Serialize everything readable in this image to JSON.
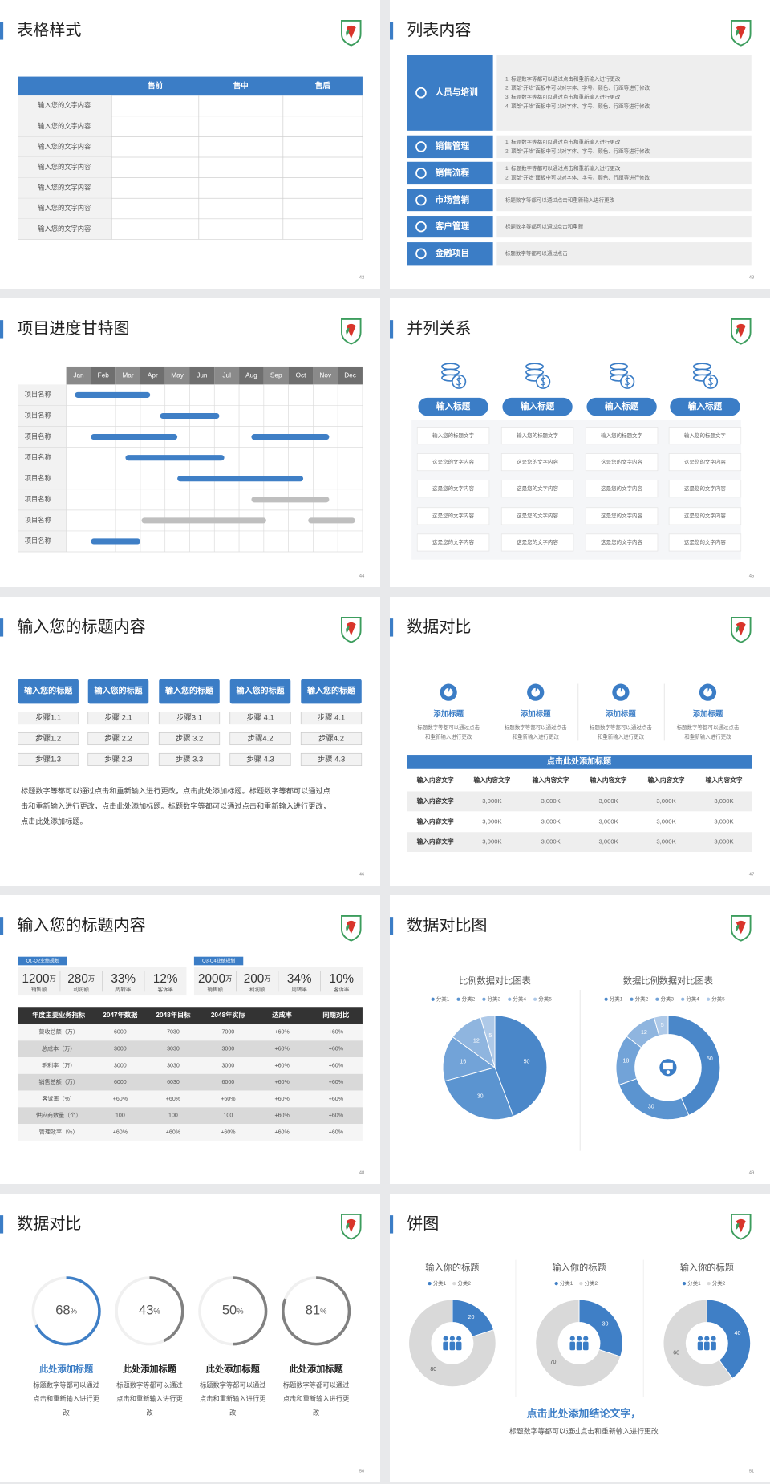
{
  "slides": [
    {
      "title": "表格样式",
      "page": "42",
      "table": {
        "header": [
          "售前",
          "售中",
          "售后"
        ],
        "row_labels": [
          "输入您的文字内容",
          "输入您的文字内容",
          "输入您的文字内容",
          "输入您的文字内容",
          "输入您的文字内容",
          "输入您的文字内容",
          "输入您的文字内容"
        ]
      }
    },
    {
      "title": "列表内容",
      "page": "43",
      "items": [
        {
          "label": "人员与培训",
          "lines": [
            "1. 标题数字等都可以通过点击和重新输入进行更改",
            "2. 顶部“开始”面板中可以对字体、字号、颜色、行距等进行修改",
            "3. 标题数字等都可以通过点击和重新输入进行更改",
            "4. 顶部“开始”面板中可以对字体、字号、颜色、行距等进行修改"
          ]
        },
        {
          "label": "销售管理",
          "lines": [
            "1. 标题数字等都可以通过点击和重新输入进行更改",
            "2. 顶部“开始”面板中可以对字体、字号、颜色、行距等进行修改"
          ]
        },
        {
          "label": "销售流程",
          "lines": [
            "1. 标题数字等都可以通过点击和重新输入进行更改",
            "2. 顶部“开始”面板中可以对字体、字号、颜色、行距等进行修改"
          ]
        },
        {
          "label": "市场营销",
          "lines": [
            "标题数字等都可以通过点击和重新输入进行更改"
          ]
        },
        {
          "label": "客户管理",
          "lines": [
            "标题数字等都可以通过点击和重新"
          ]
        },
        {
          "label": "金融项目",
          "lines": [
            "标题数字等都可以通过点击"
          ]
        }
      ]
    },
    {
      "title": "项目进度甘特图",
      "page": "44",
      "gantt": {
        "months": [
          "Jan",
          "Feb",
          "Mar",
          "Apr",
          "May",
          "Jun",
          "Jul",
          "Aug",
          "Sep",
          "Oct",
          "Nov",
          "Dec"
        ],
        "rows": [
          {
            "label": "项目名称",
            "bars": [
              {
                "start": 0.35,
                "end": 3.4,
                "color": "#3f7fc6"
              }
            ]
          },
          {
            "label": "项目名称",
            "bars": [
              {
                "start": 3.8,
                "end": 6.2,
                "color": "#3f7fc6"
              }
            ]
          },
          {
            "label": "项目名称",
            "bars": [
              {
                "start": 1.0,
                "end": 4.5,
                "color": "#3f7fc6"
              },
              {
                "start": 7.5,
                "end": 10.65,
                "color": "#3f7fc6"
              }
            ]
          },
          {
            "label": "项目名称",
            "bars": [
              {
                "start": 2.4,
                "end": 6.4,
                "color": "#3f7fc6"
              }
            ]
          },
          {
            "label": "项目名称",
            "bars": [
              {
                "start": 4.5,
                "end": 9.6,
                "color": "#3f7fc6"
              }
            ]
          },
          {
            "label": "项目名称",
            "bars": [
              {
                "start": 7.5,
                "end": 10.65,
                "color": "#bfbfbf"
              }
            ]
          },
          {
            "label": "项目名称",
            "bars": [
              {
                "start": 3.05,
                "end": 8.1,
                "color": "#bfbfbf"
              },
              {
                "start": 9.8,
                "end": 11.7,
                "color": "#bfbfbf"
              }
            ]
          },
          {
            "label": "项目名称",
            "bars": [
              {
                "start": 1.0,
                "end": 3.0,
                "color": "#3f7fc6"
              }
            ]
          }
        ]
      }
    },
    {
      "title": "并列关系",
      "page": "45",
      "columns": [
        {
          "title": "输入标题",
          "items": [
            "输入您的标题文字",
            "这是您的文字内容",
            "这是您的文字内容",
            "这是您的文字内容",
            "这是您的文字内容"
          ]
        },
        {
          "title": "输入标题",
          "items": [
            "输入您的标题文字",
            "这是您的文字内容",
            "这是您的文字内容",
            "这是您的文字内容",
            "这是您的文字内容"
          ]
        },
        {
          "title": "输入标题",
          "items": [
            "输入您的标题文字",
            "这是您的文字内容",
            "这是您的文字内容",
            "这是您的文字内容",
            "这是您的文字内容"
          ]
        },
        {
          "title": "输入标题",
          "items": [
            "输入您的标题文字",
            "这是您的文字内容",
            "这是您的文字内容",
            "这是您的文字内容",
            "这是您的文字内容"
          ]
        }
      ]
    },
    {
      "title": "输入您的标题内容",
      "page": "46",
      "steps": [
        {
          "title": "输入您的标题",
          "items": [
            "步骤1.1",
            "步骤1.2",
            "步骤1.3"
          ]
        },
        {
          "title": "输入您的标题",
          "items": [
            "步骤 2.1",
            "步骤 2.2",
            "步骤 2.3"
          ]
        },
        {
          "title": "输入您的标题",
          "items": [
            "步骤3.1",
            "步骤 3.2",
            "步骤 3.3"
          ]
        },
        {
          "title": "输入您的标题",
          "items": [
            "步骤 4.1",
            "步骤4.2",
            "步骤 4.3"
          ]
        },
        {
          "title": "输入您的标题",
          "items": [
            "步骤 4.1",
            "步骤4.2",
            "步骤 4.3"
          ]
        }
      ],
      "paragraph": "标题数字等都可以通过点击和重新输入进行更改，点击此处添加标题。标题数字等都可以通过点击和重新输入进行更改，点击此处添加标题。标题数字等都可以通过点击和重新输入进行更改，点击此处添加标题。"
    },
    {
      "title": "数据对比",
      "page": "47",
      "features": [
        {
          "title": "添加标题",
          "text": "标题数字等都可以通过点击和重新输入进行更改"
        },
        {
          "title": "添加标题",
          "text": "标题数字等都可以通过点击和重新输入进行更改"
        },
        {
          "title": "添加标题",
          "text": "标题数字等都可以通过点击和重新输入进行更改"
        },
        {
          "title": "添加标题",
          "text": "标题数字等都可以通过点击和重新输入进行更改"
        }
      ],
      "table": {
        "title": "点击此处添加标题",
        "header": [
          "输入内容文字",
          "输入内容文字",
          "输入内容文字",
          "输入内容文字",
          "输入内容文字",
          "输入内容文字"
        ],
        "rows": [
          [
            "输入内容文字",
            "3,000K",
            "3,000K",
            "3,000K",
            "3,000K",
            "3,000K"
          ],
          [
            "输入内容文字",
            "3,000K",
            "3,000K",
            "3,000K",
            "3,000K",
            "3,000K"
          ],
          [
            "输入内容文字",
            "3,000K",
            "3,000K",
            "3,000K",
            "3,000K",
            "3,000K"
          ]
        ]
      }
    },
    {
      "title": "输入您的标题内容",
      "page": "48",
      "groups": [
        {
          "tag": "Q1-Q2业绩规划",
          "kpis": [
            {
              "value": "1200",
              "unit": "万",
              "label": "销售额"
            },
            {
              "value": "280",
              "unit": "万",
              "label": "利润额"
            },
            {
              "value": "33%",
              "label": "周转率"
            },
            {
              "value": "12%",
              "label": "客诉率"
            }
          ]
        },
        {
          "tag": "Q3-Q4业绩规划",
          "kpis": [
            {
              "value": "2000",
              "unit": "万",
              "label": "销售额"
            },
            {
              "value": "200",
              "unit": "万",
              "label": "利润额"
            },
            {
              "value": "34%",
              "label": "周转率"
            },
            {
              "value": "10%",
              "label": "客诉率"
            }
          ]
        }
      ],
      "table": {
        "header": [
          "年度主要业务指标",
          "2047年数据",
          "2048年目标",
          "2048年实际",
          "达成率",
          "同期对比"
        ],
        "rows": [
          [
            "营收总额（万）",
            "6000",
            "7030",
            "7000",
            "+60%",
            "+60%"
          ],
          [
            "总成本（万）",
            "3000",
            "3030",
            "3000",
            "+60%",
            "+60%"
          ],
          [
            "毛利率（万）",
            "3000",
            "3030",
            "3000",
            "+60%",
            "+60%"
          ],
          [
            "销售总额（万）",
            "6000",
            "6030",
            "6000",
            "+60%",
            "+60%"
          ],
          [
            "客诉率（%）",
            "+60%",
            "+60%",
            "+60%",
            "+60%",
            "+60%"
          ],
          [
            "供应商数量（个）",
            "100",
            "100",
            "100",
            "+60%",
            "+60%"
          ],
          [
            "管理效率（%）",
            "+60%",
            "+60%",
            "+60%",
            "+60%",
            "+60%"
          ]
        ]
      }
    },
    {
      "title": "数据对比图",
      "page": "49",
      "charts": [
        {
          "type": "pie",
          "title": "比例数据对比图表",
          "categories": [
            "分类1",
            "分类2",
            "分类3",
            "分类4",
            "分类5"
          ],
          "colors": [
            "#4a87c9",
            "#5b94d0",
            "#72a3d8",
            "#8fb5df",
            "#aec9e8"
          ],
          "values": [
            50,
            30,
            16,
            12,
            5
          ]
        },
        {
          "type": "donut",
          "title": "数据比例数据对比图表",
          "categories": [
            "分类1",
            "分类2",
            "分类3",
            "分类4",
            "分类5"
          ],
          "colors": [
            "#4a87c9",
            "#5b94d0",
            "#72a3d8",
            "#8fb5df",
            "#aec9e8"
          ],
          "values": [
            50,
            30,
            18,
            12,
            5
          ]
        }
      ]
    },
    {
      "title": "数据对比",
      "page": "50",
      "rings": [
        {
          "value": 68,
          "unit": "%",
          "color": "#3f7fc6",
          "title_color": "#3f7fc6",
          "title": "此处添加标题",
          "text": "标题数字等都可以通过点击和重新输入进行更改"
        },
        {
          "value": 43,
          "unit": "%",
          "color": "#808080",
          "title_color": "#222222",
          "title": "此处添加标题",
          "text": "标题数字等都可以通过点击和重新输入进行更改"
        },
        {
          "value": 50,
          "unit": "%",
          "color": "#808080",
          "title_color": "#222222",
          "title": "此处添加标题",
          "text": "标题数字等都可以通过点击和重新输入进行更改"
        },
        {
          "value": 81,
          "unit": "%",
          "color": "#808080",
          "title_color": "#222222",
          "title": "此处添加标题",
          "text": "标题数字等都可以通过点击和重新输入进行更改"
        }
      ]
    },
    {
      "title": "饼图",
      "page": "51",
      "charts": [
        {
          "type": "donut",
          "title": "输入你的标题",
          "categories": [
            "分类1",
            "分类2"
          ],
          "colors": [
            "#3f7fc6",
            "#d9d9d9"
          ],
          "values": [
            20,
            80
          ]
        },
        {
          "type": "donut",
          "title": "输入你的标题",
          "categories": [
            "分类1",
            "分类2"
          ],
          "colors": [
            "#3f7fc6",
            "#d9d9d9"
          ],
          "values": [
            30,
            70
          ]
        },
        {
          "type": "donut",
          "title": "输入你的标题",
          "categories": [
            "分类1",
            "分类2"
          ],
          "colors": [
            "#3f7fc6",
            "#d9d9d9"
          ],
          "values": [
            40,
            60
          ]
        }
      ],
      "conclusion": "点击此处添加结论文字，",
      "note": "标题数字等都可以通过点击和重新输入进行更改"
    }
  ]
}
